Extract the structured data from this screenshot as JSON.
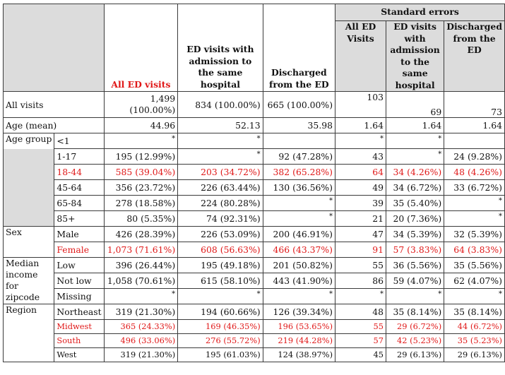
{
  "header": {
    "standard_errors": "Standard errors",
    "col_all": "All ED visits",
    "col_admit": "ED visits with admission to the same hospital",
    "col_disch": "Discharged from the ED",
    "se_all": "All ED Visits",
    "se_admit": "ED visits with admission to the same hospital",
    "se_disch": "Discharged from the ED"
  },
  "rows": {
    "all_visits": {
      "group": "All visits",
      "all": "1,499 (100.00%)",
      "admit": "834 (100.00%)",
      "disch": "665 (100.00%)",
      "se_all": "103",
      "se_admit": "69",
      "se_disch": "73"
    },
    "age_mean": {
      "group": "Age (mean)",
      "all": "44.96",
      "admit": "52.13",
      "disch": "35.98",
      "se_all": "1.64",
      "se_admit": "1.64",
      "se_disch": "1.64"
    },
    "age_lt1": {
      "group": "Age group",
      "sub": "<1",
      "all": "*",
      "admit": "*",
      "disch": "",
      "se_all": "*",
      "se_admit": "*",
      "se_disch": ""
    },
    "age_1_17": {
      "sub": "1-17",
      "all": "195 (12.99%)",
      "admit": "*",
      "disch": "92 (47.28%)",
      "se_all": "43",
      "se_admit": "*",
      "se_disch": "24 (9.28%)"
    },
    "age_18_44": {
      "sub": "18-44",
      "all": "585 (39.04%)",
      "admit": "203 (34.72%)",
      "disch": "382 (65.28%)",
      "se_all": "64",
      "se_admit": "34 (4.26%)",
      "se_disch": "48 (4.26%)"
    },
    "age_45_64": {
      "sub": "45-64",
      "all": "356 (23.72%)",
      "admit": "226 (63.44%)",
      "disch": "130 (36.56%)",
      "se_all": "49",
      "se_admit": "34 (6.72%)",
      "se_disch": "33 (6.72%)"
    },
    "age_65_84": {
      "sub": "65-84",
      "all": "278 (18.58%)",
      "admit": "224 (80.28%)",
      "disch": "*",
      "se_all": "39",
      "se_admit": "35 (5.40%)",
      "se_disch": "*"
    },
    "age_85": {
      "sub": "85+",
      "all": "80 (5.35%)",
      "admit": "74 (92.31%)",
      "disch": "*",
      "se_all": "21",
      "se_admit": "20 (7.36%)",
      "se_disch": "*"
    },
    "sex_male": {
      "group": "Sex",
      "sub": "Male",
      "all": "426 (28.39%)",
      "admit": "226 (53.09%)",
      "disch": "200 (46.91%)",
      "se_all": "47",
      "se_admit": "34 (5.39%)",
      "se_disch": "32 (5.39%)"
    },
    "sex_female": {
      "sub": "Female",
      "all": "1,073 (71.61%)",
      "admit": "608 (56.63%)",
      "disch": "466 (43.37%)",
      "se_all": "91",
      "se_admit": "57 (3.83%)",
      "se_disch": "64 (3.83%)"
    },
    "inc_low": {
      "group": "Median income for zipcode",
      "sub": "Low",
      "all": "396 (26.44%)",
      "admit": "195 (49.18%)",
      "disch": "201 (50.82%)",
      "se_all": "55",
      "se_admit": "36 (5.56%)",
      "se_disch": "35 (5.56%)"
    },
    "inc_notlow": {
      "sub": "Not low",
      "all": "1,058 (70.61%)",
      "admit": "615 (58.10%)",
      "disch": "443 (41.90%)",
      "se_all": "86",
      "se_admit": "59 (4.07%)",
      "se_disch": "62 (4.07%)"
    },
    "inc_missing": {
      "sub": "Missing",
      "all": "*",
      "admit": "*",
      "disch": "*",
      "se_all": "*",
      "se_admit": "*",
      "se_disch": "*"
    },
    "reg_ne": {
      "group": "Region",
      "sub": "Northeast",
      "all": "319 (21.30%)",
      "admit": "194 (60.66%)",
      "disch": "126 (39.34%)",
      "se_all": "48",
      "se_admit": "35 (8.14%)",
      "se_disch": "35 (8.14%)"
    },
    "reg_mw": {
      "sub": "Midwest",
      "all": "365 (24.33%)",
      "admit": "169 (46.35%)",
      "disch": "196 (53.65%)",
      "se_all": "55",
      "se_admit": "29 (6.72%)",
      "se_disch": "44 (6.72%)"
    },
    "reg_south": {
      "sub": "South",
      "all": "496 (33.06%)",
      "admit": "276 (55.72%)",
      "disch": "219 (44.28%)",
      "se_all": "57",
      "se_admit": "42 (5.23%)",
      "se_disch": "35 (5.23%)"
    },
    "reg_west": {
      "sub": "West",
      "all": "319 (21.30%)",
      "admit": "195 (61.03%)",
      "disch": "124 (38.97%)",
      "se_all": "45",
      "se_admit": "29 (6.13%)",
      "se_disch": "29 (6.13%)"
    }
  },
  "colors": {
    "highlight": "#e01818",
    "grid": "#3b3b3b",
    "shade": "#dcdcdc"
  }
}
